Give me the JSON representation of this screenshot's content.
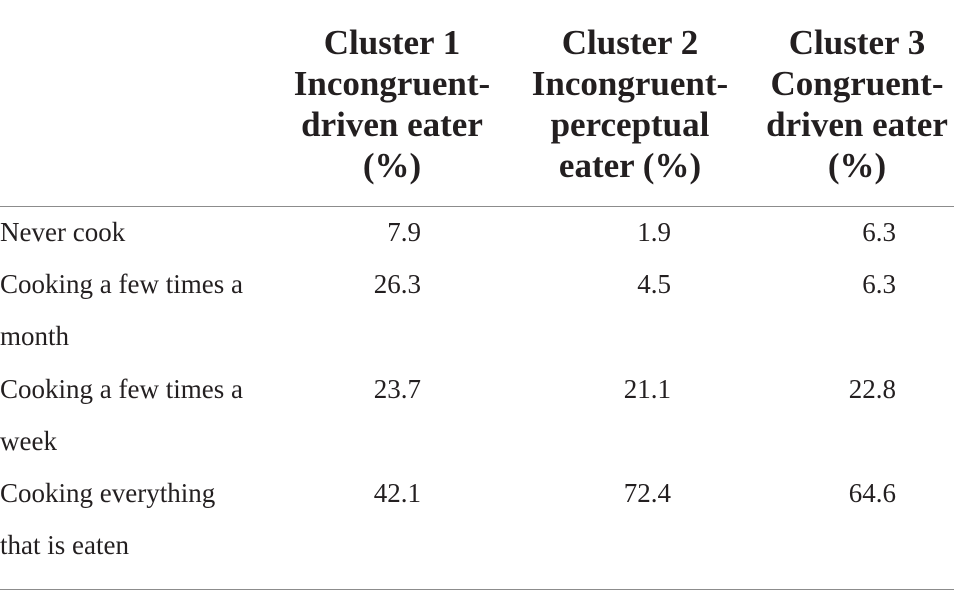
{
  "table": {
    "headers": [
      "Cluster 1\nIncongruent-\ndriven eater\n(%)",
      "Cluster 2\nIncongruent-\nperceptual\neater (%)",
      "Cluster 3\nCongruent-\ndriven eater\n(%)"
    ],
    "rows": [
      {
        "label": "Never cook",
        "values": [
          "7.9",
          "1.9",
          "6.3"
        ]
      },
      {
        "label": "Cooking a few times a\nmonth",
        "values": [
          "26.3",
          "4.5",
          "6.3"
        ]
      },
      {
        "label": "Cooking a few times a\nweek",
        "values": [
          "23.7",
          "21.1",
          "22.8"
        ]
      },
      {
        "label": "Cooking everything\nthat is eaten",
        "values": [
          "42.1",
          "72.4",
          "64.6"
        ]
      }
    ]
  }
}
